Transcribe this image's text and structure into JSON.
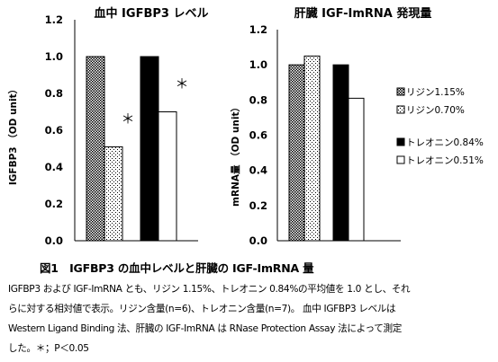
{
  "chart_data": [
    {
      "type": "bar",
      "title": "血中 IGFBP3 レベル",
      "ylabel": "IGFBP3 （OD unit）",
      "ylim": [
        0,
        1.2
      ],
      "yticks": [
        "0.0",
        "0.2",
        "0.4",
        "0.6",
        "0.8",
        "1.0",
        "1.2"
      ],
      "groups": [
        {
          "series": [
            "リジン1.15%",
            "リジン0.70%"
          ],
          "values": [
            1.0,
            0.51
          ],
          "markers": [
            "",
            "＊"
          ]
        },
        {
          "series": [
            "トレオニン0.84%",
            "トレオニン0.51%"
          ],
          "values": [
            1.0,
            0.7
          ],
          "markers": [
            "",
            "＊"
          ]
        }
      ]
    },
    {
      "type": "bar",
      "title": "肝臓 IGF-ImRNA 発現量",
      "ylabel": "mRNA量 （OD unit）",
      "ylim": [
        0,
        1.2
      ],
      "yticks": [
        "0.0",
        "0.2",
        "0.4",
        "0.6",
        "0.8",
        "1.0",
        "1.2"
      ],
      "groups": [
        {
          "series": [
            "リジン1.15%",
            "リジン0.70%"
          ],
          "values": [
            1.0,
            1.05
          ],
          "markers": [
            "",
            ""
          ]
        },
        {
          "series": [
            "トレオニン0.84%",
            "トレオニン0.51%"
          ],
          "values": [
            1.0,
            0.81
          ],
          "markers": [
            "",
            ""
          ]
        }
      ]
    }
  ],
  "legend": {
    "placement": "right",
    "items": [
      {
        "label": "リジン1.15%",
        "pattern": "dense-dots"
      },
      {
        "label": "リジン0.70%",
        "pattern": "sparse-dots"
      },
      {
        "label": "トレオニン0.84%",
        "pattern": "solid-black"
      },
      {
        "label": "トレオニン0.51%",
        "pattern": "white"
      }
    ]
  },
  "caption": {
    "title": "図1　IGFBP3 の血中レベルと肝臓の IGF-ImRNA 量",
    "lines": [
      "IGFBP3 および IGF-ImRNA とも、リジン 1.15%、トレオニン 0.84%の平均値を 1.0 とし、それ",
      "らに対する相対値で表示。リジン含量(n=6)、トレオニン含量(n=7)。 血中 IGFBP3 レベルは",
      "Western Ligand Binding 法、肝臓の IGF-ImRNA は RNase Protection Assay 法によって測定",
      "した。＊；P＜0.05"
    ]
  }
}
